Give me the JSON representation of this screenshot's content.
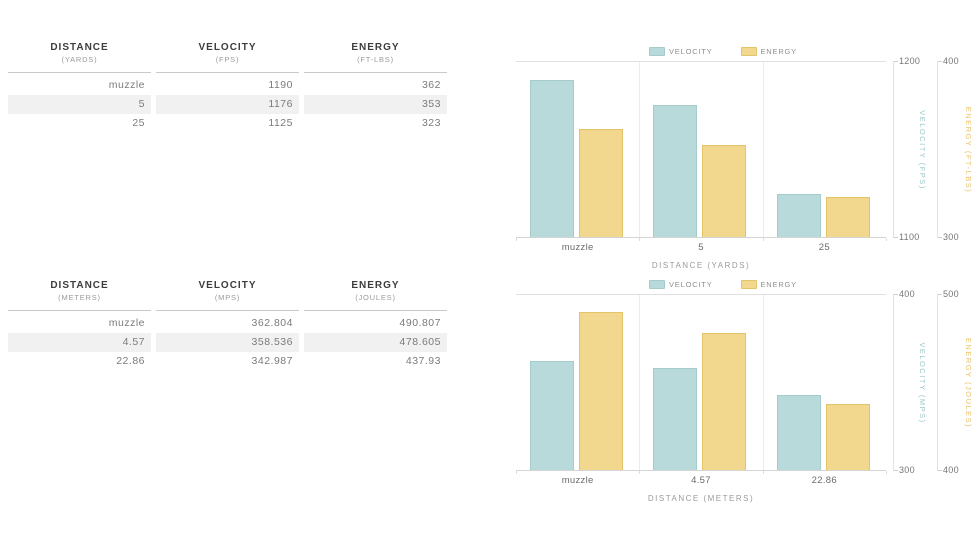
{
  "tables": [
    {
      "columns": [
        {
          "title": "DISTANCE",
          "unit": "(YARDS)"
        },
        {
          "title": "VELOCITY",
          "unit": "(FPS)"
        },
        {
          "title": "ENERGY",
          "unit": "(FT-LBS)"
        }
      ],
      "rows": [
        [
          "muzzle",
          "1190",
          "362"
        ],
        [
          "5",
          "1176",
          "353"
        ],
        [
          "25",
          "1125",
          "323"
        ]
      ]
    },
    {
      "columns": [
        {
          "title": "DISTANCE",
          "unit": "(METERS)"
        },
        {
          "title": "VELOCITY",
          "unit": "(MPS)"
        },
        {
          "title": "ENERGY",
          "unit": "(JOULES)"
        }
      ],
      "rows": [
        [
          "muzzle",
          "362.804",
          "490.807"
        ],
        [
          "4.57",
          "358.536",
          "478.605"
        ],
        [
          "22.86",
          "342.987",
          "437.93"
        ]
      ]
    }
  ],
  "chart_data": [
    {
      "type": "bar",
      "title": "",
      "categories": [
        "muzzle",
        "5",
        "25"
      ],
      "xlabel": "DISTANCE (YARDS)",
      "legend_position": "top",
      "grid": "vertical category separators",
      "series": [
        {
          "name": "VELOCITY",
          "values": [
            1190,
            1176,
            1125
          ],
          "axis_title": "VELOCITY (FPS)",
          "axis_min": 1100,
          "axis_max": 1200,
          "color": "#b8dadb",
          "border": "#a5cccd"
        },
        {
          "name": "ENERGY",
          "values": [
            362,
            353,
            323
          ],
          "axis_title": "ENERGY (FT-LBS)",
          "axis_min": 300,
          "axis_max": 400,
          "color": "#f2d88e",
          "border": "#e3c468"
        }
      ]
    },
    {
      "type": "bar",
      "title": "",
      "categories": [
        "muzzle",
        "4.57",
        "22.86"
      ],
      "xlabel": "DISTANCE (METERS)",
      "legend_position": "top",
      "grid": "vertical category separators",
      "series": [
        {
          "name": "VELOCITY",
          "values": [
            362.804,
            358.536,
            342.987
          ],
          "axis_title": "VELOCITY (MPS)",
          "axis_min": 300,
          "axis_max": 400,
          "color": "#b8dadb",
          "border": "#a5cccd"
        },
        {
          "name": "ENERGY",
          "values": [
            490.807,
            478.605,
            437.93
          ],
          "axis_title": "ENERGY (JOULES)",
          "axis_min": 400,
          "axis_max": 500,
          "color": "#f2d88e",
          "border": "#e3c468"
        }
      ]
    }
  ],
  "colors": {
    "velocity_fill": "#b8dadb",
    "velocity_border": "#a5cccd",
    "velocity_text": "#9cc7cd",
    "energy_fill": "#f2d88e",
    "energy_border": "#e3c468",
    "energy_text": "#e9c36a",
    "grid_line": "#ececec",
    "axis_line": "#e2e2e2",
    "tick_text": "#757575",
    "table_alt_row": "#f1f1f1"
  }
}
